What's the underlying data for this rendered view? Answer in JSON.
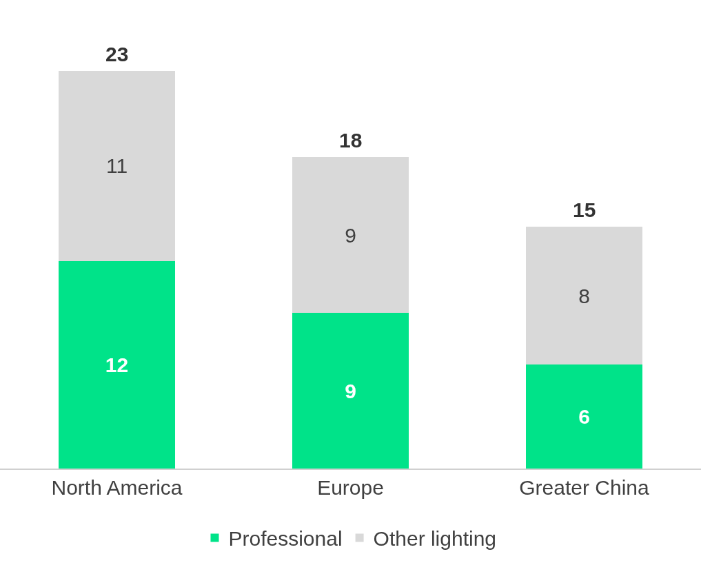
{
  "chart_data": {
    "type": "bar",
    "stacked": true,
    "categories": [
      "North America",
      "Europe",
      "Greater China"
    ],
    "series": [
      {
        "name": "Professional",
        "color": "#00e389",
        "values": [
          12,
          9,
          6
        ]
      },
      {
        "name": "Other lighting",
        "color": "#d9d9d9",
        "values": [
          11,
          9,
          8
        ]
      }
    ],
    "data_labels": true,
    "totals": [
      "23",
      "18",
      "15"
    ],
    "legend": "bottom",
    "tick_labels": "x"
  }
}
